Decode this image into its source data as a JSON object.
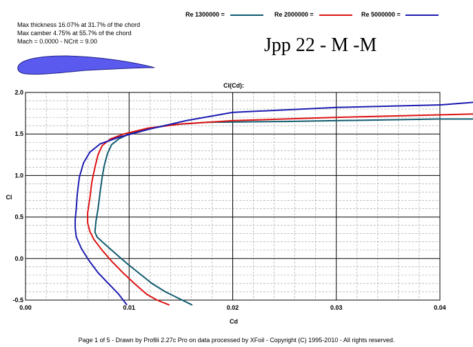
{
  "info": {
    "line1": "Max thickness 16.07% at 31.7% of the chord",
    "line2": "Max camber 4.75% at 55.7% of the chord",
    "line3": "Mach = 0.0000 - NCrit = 9.00"
  },
  "header_title": "Jpp 22 - M -M",
  "footer": "Page 1 of 5   -   Drawn by Profili 2.27c Pro on data processed by  XFoil - Copyright (C) 1995-2010 - All rights reserved.",
  "colors": {
    "re1300000": "#0e5a6e",
    "re2000000": "#dd1111",
    "re5000000": "#1a1ab0",
    "airfoil_fill": "#5a5aee"
  },
  "chart_data": {
    "type": "line",
    "title": "Cl(Cd):",
    "xlabel": "Cd",
    "ylabel": "Cl",
    "xlim": [
      0,
      0.04
    ],
    "ylim": [
      -0.5,
      2.0
    ],
    "xticks": [
      "0.00",
      "0.01",
      "0.02",
      "0.03",
      "0.04"
    ],
    "yticks": [
      "-0.5",
      "0.0",
      "0.5",
      "1.0",
      "1.5",
      "2.0"
    ],
    "grid": true,
    "legend_position": "top",
    "series": [
      {
        "name": "Re 1300000 =",
        "color": "#0e5a6e",
        "points": [
          [
            0.0161,
            -0.56
          ],
          [
            0.0148,
            -0.48
          ],
          [
            0.0135,
            -0.4
          ],
          [
            0.0122,
            -0.3
          ],
          [
            0.011,
            -0.18
          ],
          [
            0.0098,
            -0.06
          ],
          [
            0.0086,
            0.07
          ],
          [
            0.0076,
            0.18
          ],
          [
            0.0069,
            0.26
          ],
          [
            0.0067,
            0.32
          ],
          [
            0.0068,
            0.45
          ],
          [
            0.007,
            0.6
          ],
          [
            0.0072,
            0.8
          ],
          [
            0.0074,
            0.98
          ],
          [
            0.0076,
            1.12
          ],
          [
            0.0079,
            1.26
          ],
          [
            0.0083,
            1.37
          ],
          [
            0.009,
            1.44
          ],
          [
            0.01,
            1.5
          ],
          [
            0.0118,
            1.56
          ],
          [
            0.014,
            1.61
          ],
          [
            0.0175,
            1.64
          ],
          [
            0.025,
            1.65
          ],
          [
            0.04,
            1.68
          ],
          [
            0.045,
            1.68
          ]
        ]
      },
      {
        "name": "Re 2000000 =",
        "color": "#dd1111",
        "points": [
          [
            0.0139,
            -0.56
          ],
          [
            0.0127,
            -0.5
          ],
          [
            0.0117,
            -0.43
          ],
          [
            0.0105,
            -0.3
          ],
          [
            0.0094,
            -0.17
          ],
          [
            0.0083,
            -0.03
          ],
          [
            0.0074,
            0.1
          ],
          [
            0.0066,
            0.23
          ],
          [
            0.0062,
            0.33
          ],
          [
            0.006,
            0.43
          ],
          [
            0.006,
            0.55
          ],
          [
            0.0062,
            0.72
          ],
          [
            0.0064,
            0.92
          ],
          [
            0.0067,
            1.1
          ],
          [
            0.007,
            1.25
          ],
          [
            0.0074,
            1.36
          ],
          [
            0.0082,
            1.44
          ],
          [
            0.0095,
            1.5
          ],
          [
            0.0118,
            1.57
          ],
          [
            0.015,
            1.62
          ],
          [
            0.02,
            1.66
          ],
          [
            0.03,
            1.7
          ],
          [
            0.04,
            1.73
          ],
          [
            0.045,
            1.74
          ]
        ]
      },
      {
        "name": "Re 5000000 =",
        "color": "#1a1ab0",
        "points": [
          [
            0.0098,
            -0.56
          ],
          [
            0.009,
            -0.43
          ],
          [
            0.008,
            -0.3
          ],
          [
            0.007,
            -0.17
          ],
          [
            0.0061,
            -0.02
          ],
          [
            0.0054,
            0.12
          ],
          [
            0.0049,
            0.26
          ],
          [
            0.0048,
            0.37
          ],
          [
            0.0048,
            0.47
          ],
          [
            0.0049,
            0.6
          ],
          [
            0.005,
            0.78
          ],
          [
            0.0052,
            0.98
          ],
          [
            0.0056,
            1.15
          ],
          [
            0.0062,
            1.28
          ],
          [
            0.0072,
            1.38
          ],
          [
            0.009,
            1.46
          ],
          [
            0.012,
            1.56
          ],
          [
            0.0155,
            1.66
          ],
          [
            0.02,
            1.76
          ],
          [
            0.03,
            1.82
          ],
          [
            0.04,
            1.85
          ],
          [
            0.045,
            1.88
          ]
        ]
      }
    ]
  }
}
